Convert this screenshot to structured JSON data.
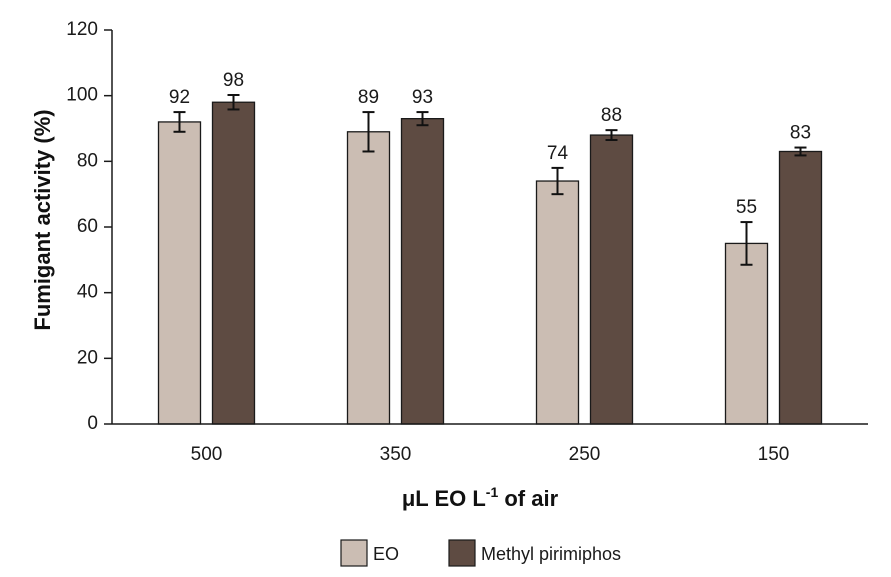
{
  "chart_data": {
    "type": "bar",
    "categories": [
      "500",
      "350",
      "250",
      "150"
    ],
    "series": [
      {
        "name": "EO",
        "color": "#cbbdb3",
        "values": [
          92,
          89,
          74,
          55
        ],
        "errors": [
          3,
          6,
          4,
          6.5
        ],
        "value_labels": [
          "92",
          "89",
          "74",
          "55"
        ]
      },
      {
        "name": "Methyl pirimiphos",
        "color": "#5e4b42",
        "values": [
          98,
          93,
          88,
          83
        ],
        "errors": [
          2.2,
          2,
          1.5,
          1.2
        ],
        "value_labels": [
          "98",
          "93",
          "88",
          "83"
        ]
      }
    ],
    "ylabel": "Fumigant activity (%)",
    "xlabel": {
      "main": "μL EO L",
      "sup": "-1",
      "tail": " of air"
    },
    "ylim": [
      0,
      120
    ],
    "yticks": [
      0,
      20,
      40,
      60,
      80,
      100,
      120
    ],
    "grid": false,
    "legend": "bottom"
  }
}
